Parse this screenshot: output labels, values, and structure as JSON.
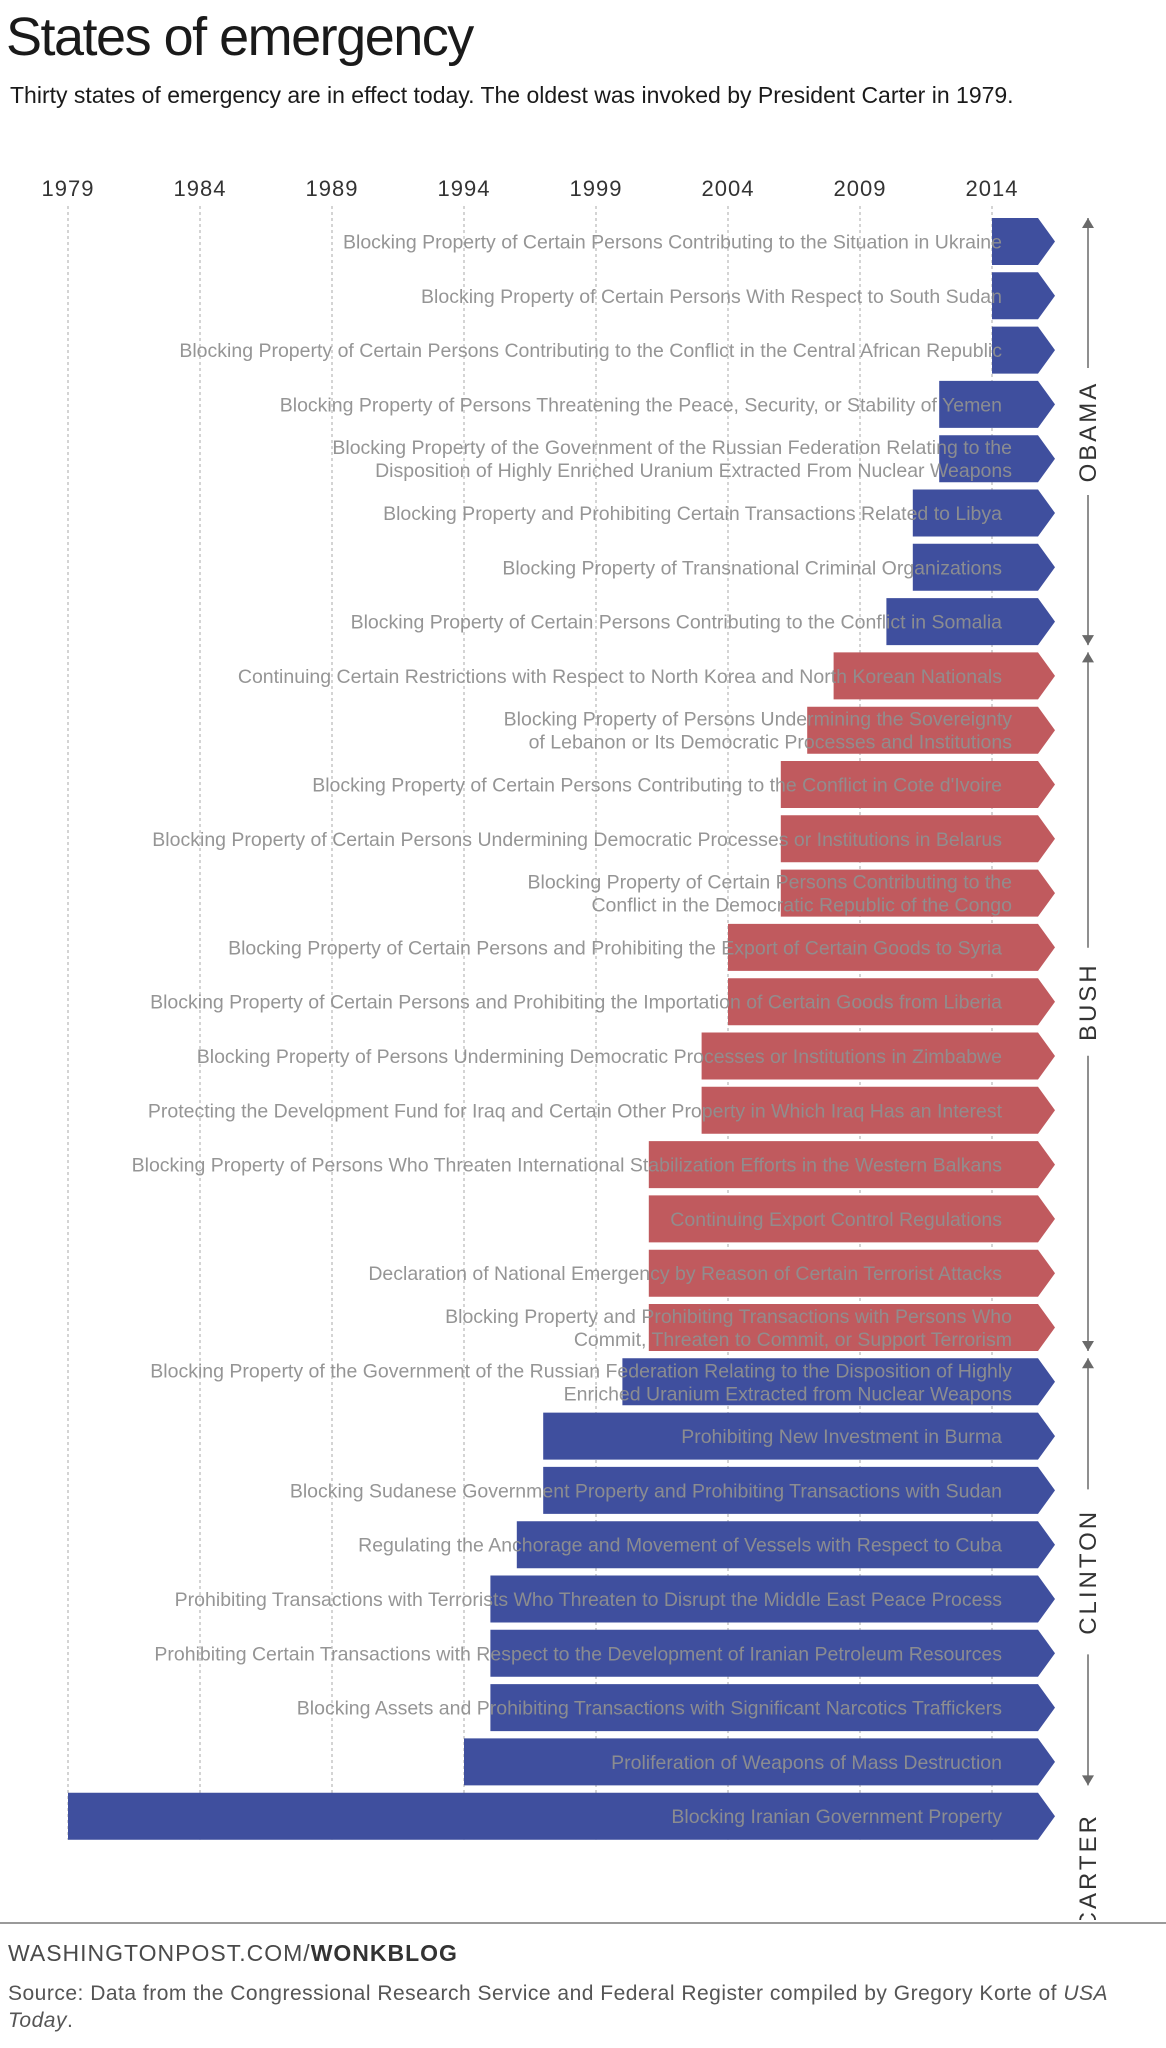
{
  "title": "States of emergency",
  "subtitle": "Thirty states of emergency are in effect today. The oldest was invoked by President Carter in 1979.",
  "colors": {
    "democrat": "#3f4f9e",
    "republican": "#c05a5e",
    "label": "#8f8f8f",
    "grid": "#b8b8b8",
    "axis": "#333333"
  },
  "footer": {
    "credit_prefix": "WASHINGTONPOST.COM/",
    "credit_brand": "WONKBLOG",
    "source_text": "Source: Data from the Congressional Research Service and Federal Register compiled by Gregory Korte of ",
    "source_emphasis": "USA Today",
    "source_end": "."
  },
  "chart_data": {
    "type": "bar",
    "orientation": "horizontal",
    "x_ticks": [
      "1979",
      "1984",
      "1989",
      "1994",
      "1999",
      "2004",
      "2009",
      "2014"
    ],
    "xlim": [
      1979,
      2015.8
    ],
    "grid": true,
    "groups": [
      {
        "label": "OBAMA",
        "party": "democrat"
      },
      {
        "label": "BUSH",
        "party": "republican"
      },
      {
        "label": "CLINTON",
        "party": "democrat"
      },
      {
        "label": "CARTER",
        "party": "democrat"
      }
    ],
    "bars": [
      {
        "label": [
          "Blocking Property of Certain Persons Contributing to the Situation in Ukraine"
        ],
        "start": 2014,
        "president": "OBAMA",
        "party": "democrat"
      },
      {
        "label": [
          "Blocking Property of Certain Persons With Respect to South Sudan"
        ],
        "start": 2014,
        "president": "OBAMA",
        "party": "democrat"
      },
      {
        "label": [
          "Blocking Property of Certain Persons Contributing to the Conflict in the Central African Republic"
        ],
        "start": 2014,
        "president": "OBAMA",
        "party": "democrat"
      },
      {
        "label": [
          "Blocking Property of Persons Threatening the Peace, Security, or Stability of Yemen"
        ],
        "start": 2012,
        "president": "OBAMA",
        "party": "democrat"
      },
      {
        "label": [
          "Blocking Property of the Government of the Russian Federation Relating to the",
          "Disposition of Highly Enriched Uranium Extracted From Nuclear Weapons"
        ],
        "start": 2012,
        "president": "OBAMA",
        "party": "democrat"
      },
      {
        "label": [
          "Blocking Property and Prohibiting Certain Transactions Related to Libya"
        ],
        "start": 2011,
        "president": "OBAMA",
        "party": "democrat"
      },
      {
        "label": [
          "Blocking Property of Transnational Criminal Organizations"
        ],
        "start": 2011,
        "president": "OBAMA",
        "party": "democrat"
      },
      {
        "label": [
          "Blocking Property of Certain Persons Contributing to the Conflict in Somalia"
        ],
        "start": 2010,
        "president": "OBAMA",
        "party": "democrat"
      },
      {
        "label": [
          "Continuing Certain Restrictions with Respect to North Korea and North Korean Nationals"
        ],
        "start": 2008,
        "president": "BUSH",
        "party": "republican"
      },
      {
        "label": [
          "Blocking Property of Persons Undermining the Sovereignty",
          "of Lebanon or Its Democratic Processes and Institutions"
        ],
        "start": 2007,
        "president": "BUSH",
        "party": "republican"
      },
      {
        "label": [
          "Blocking Property of Certain Persons Contributing to the Conflict in Cote d'Ivoire"
        ],
        "start": 2006,
        "president": "BUSH",
        "party": "republican"
      },
      {
        "label": [
          "Blocking Property of Certain Persons Undermining Democratic Processes or Institutions in Belarus"
        ],
        "start": 2006,
        "president": "BUSH",
        "party": "republican"
      },
      {
        "label": [
          "Blocking Property of Certain Persons Contributing to the",
          "Conflict in the Democratic Republic of the Congo"
        ],
        "start": 2006,
        "president": "BUSH",
        "party": "republican"
      },
      {
        "label": [
          "Blocking Property of Certain Persons and Prohibiting the Export of Certain Goods to Syria"
        ],
        "start": 2004,
        "president": "BUSH",
        "party": "republican"
      },
      {
        "label": [
          "Blocking Property of Certain Persons and Prohibiting the Importation of Certain Goods from Liberia"
        ],
        "start": 2004,
        "president": "BUSH",
        "party": "republican"
      },
      {
        "label": [
          "Blocking Property of Persons Undermining Democratic Processes or Institutions in Zimbabwe"
        ],
        "start": 2003,
        "president": "BUSH",
        "party": "republican"
      },
      {
        "label": [
          "Protecting the Development Fund for Iraq and Certain Other Property in Which Iraq Has an Interest"
        ],
        "start": 2003,
        "president": "BUSH",
        "party": "republican"
      },
      {
        "label": [
          "Blocking Property of Persons Who Threaten International Stabilization Efforts in the Western Balkans"
        ],
        "start": 2001,
        "president": "BUSH",
        "party": "republican"
      },
      {
        "label": [
          "Continuing Export Control Regulations"
        ],
        "start": 2001,
        "president": "BUSH",
        "party": "republican"
      },
      {
        "label": [
          "Declaration of National Emergency by Reason of Certain Terrorist Attacks"
        ],
        "start": 2001,
        "president": "BUSH",
        "party": "republican"
      },
      {
        "label": [
          "Blocking Property and Prohibiting Transactions with Persons Who",
          "Commit, Threaten to Commit, or Support Terrorism"
        ],
        "start": 2001,
        "president": "BUSH",
        "party": "republican"
      },
      {
        "label": [
          "Blocking Property of the Government of the Russian Federation Relating to the Disposition of Highly",
          "Enriched Uranium Extracted from Nuclear Weapons"
        ],
        "start": 2000,
        "president": "CLINTON",
        "party": "democrat"
      },
      {
        "label": [
          "Prohibiting New Investment in Burma"
        ],
        "start": 1997,
        "president": "CLINTON",
        "party": "democrat"
      },
      {
        "label": [
          "Blocking Sudanese Government Property and Prohibiting Transactions with Sudan"
        ],
        "start": 1997,
        "president": "CLINTON",
        "party": "democrat"
      },
      {
        "label": [
          "Regulating the Anchorage and Movement of Vessels with Respect to Cuba"
        ],
        "start": 1996,
        "president": "CLINTON",
        "party": "democrat"
      },
      {
        "label": [
          "Prohibiting Transactions with Terrorists Who Threaten to Disrupt the Middle East Peace Process"
        ],
        "start": 1995,
        "president": "CLINTON",
        "party": "democrat"
      },
      {
        "label": [
          "Prohibiting Certain Transactions with Respect to the Development of Iranian Petroleum Resources"
        ],
        "start": 1995,
        "president": "CLINTON",
        "party": "democrat"
      },
      {
        "label": [
          "Blocking Assets and Prohibiting Transactions with Significant Narcotics Traffickers"
        ],
        "start": 1995,
        "president": "CLINTON",
        "party": "democrat"
      },
      {
        "label": [
          "Proliferation of Weapons of Mass Destruction"
        ],
        "start": 1994,
        "president": "CLINTON",
        "party": "democrat"
      },
      {
        "label": [
          "Blocking Iranian Government Property"
        ],
        "start": 1979,
        "president": "CARTER",
        "party": "democrat"
      }
    ]
  }
}
